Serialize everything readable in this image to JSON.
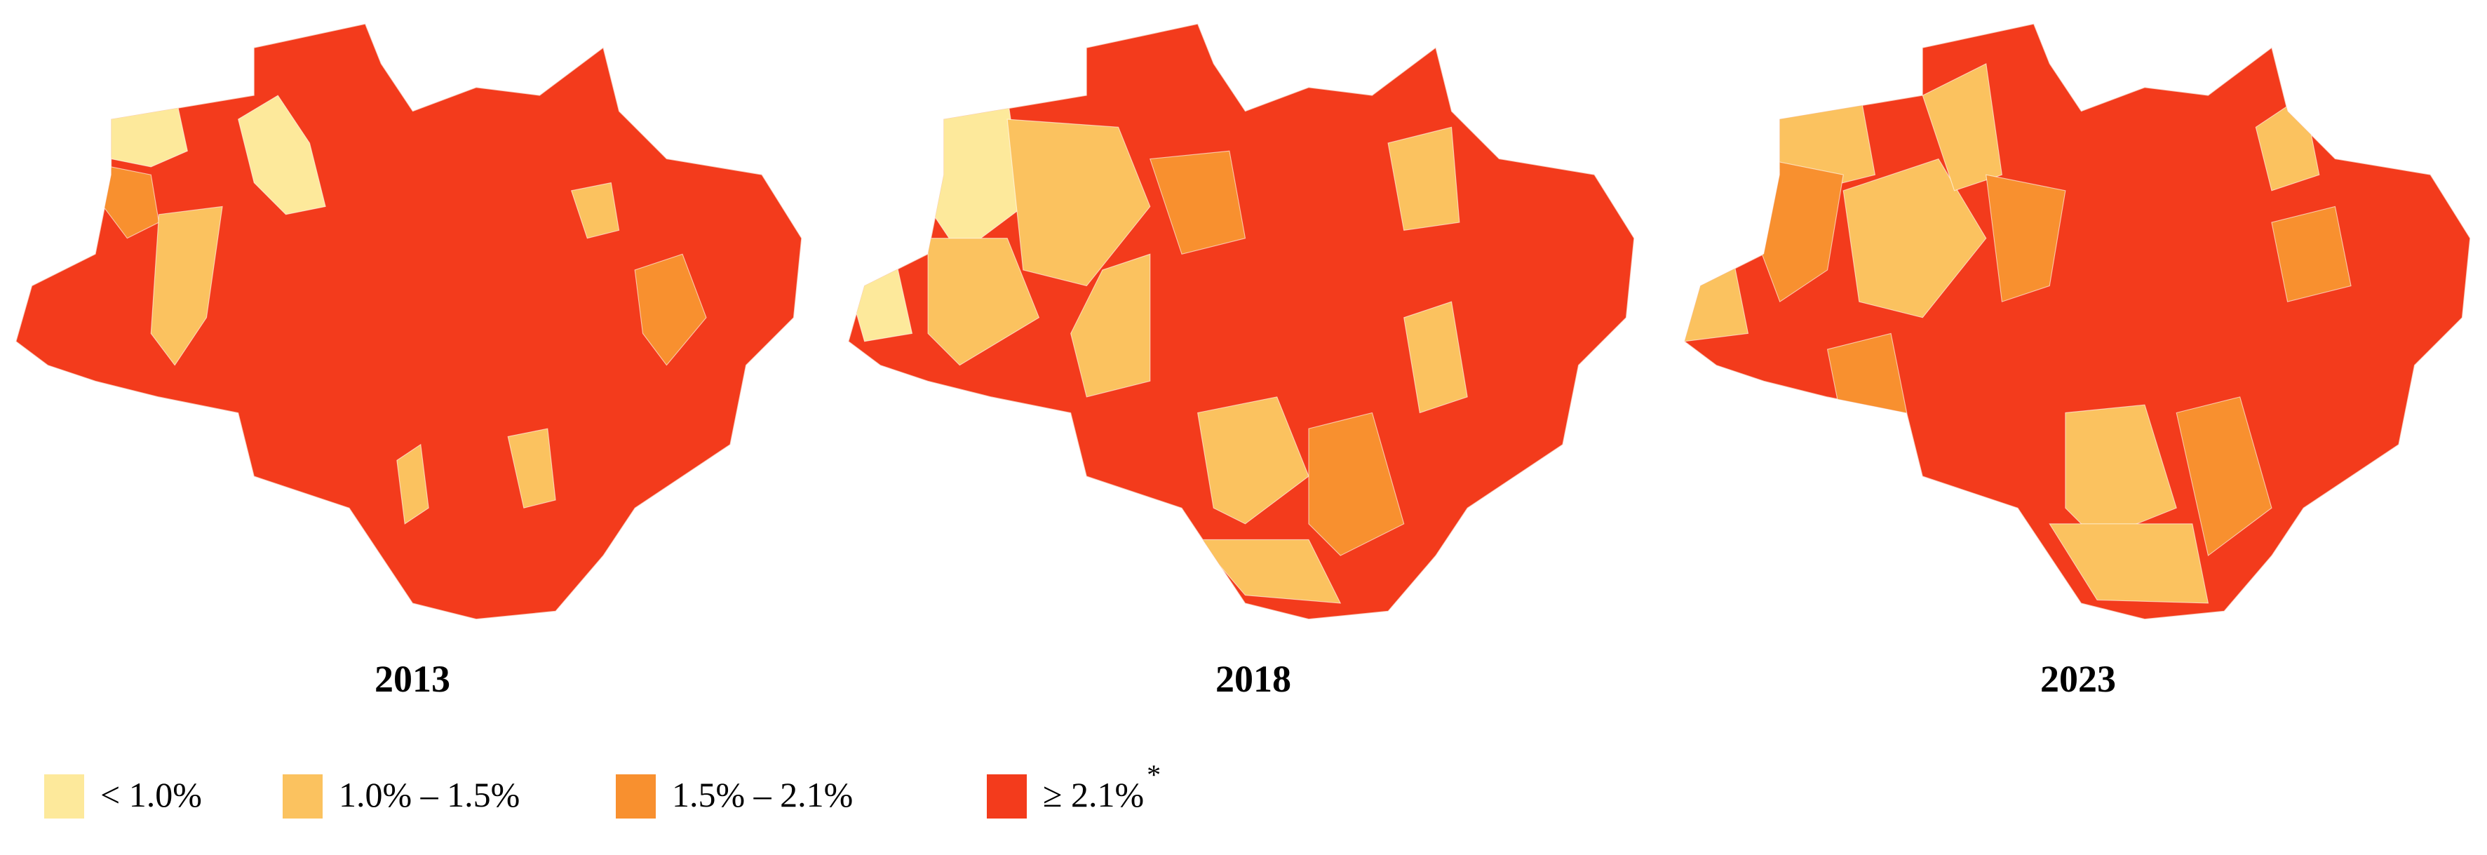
{
  "maps": [
    {
      "year": "2013"
    },
    {
      "year": "2018"
    },
    {
      "year": "2023"
    }
  ],
  "legend": {
    "items": [
      {
        "label": "< 1.0%",
        "color": "#fde99b"
      },
      {
        "label": "1.0% – 1.5%",
        "color": "#fbc25f"
      },
      {
        "label": "1.5% – 2.1%",
        "color": "#f8902f"
      },
      {
        "label": "≥ 2.1%",
        "color": "#f33b1c"
      }
    ],
    "footnote_mark": "*"
  }
}
